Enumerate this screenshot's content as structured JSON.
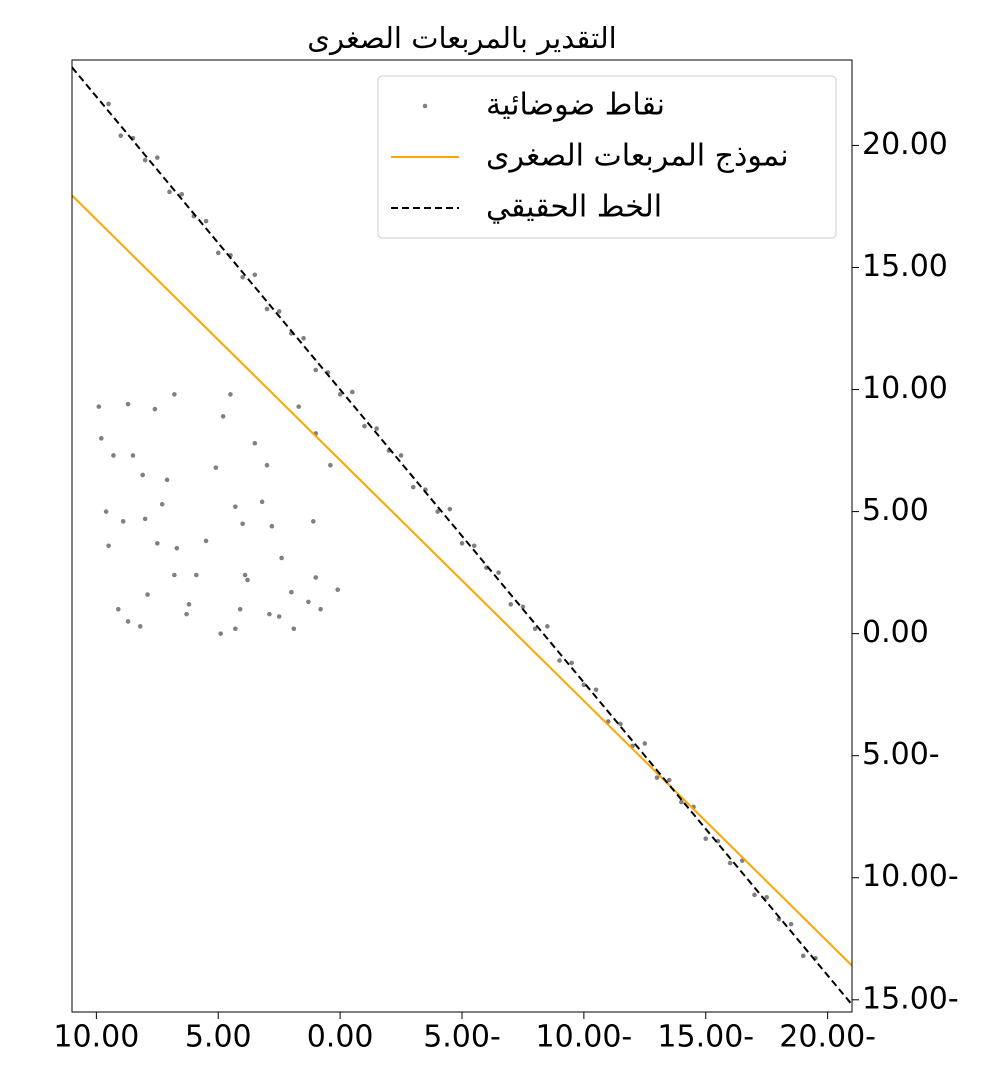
{
  "chart_data": {
    "type": "scatter",
    "title": "التقدير بالمربعات الصغرى",
    "xlim": [
      11,
      -21
    ],
    "ylim": [
      -15.5,
      23.5
    ],
    "xticks": [
      {
        "value": 10,
        "label": "10.00"
      },
      {
        "value": 5,
        "label": "5.00"
      },
      {
        "value": 0,
        "label": "0.00"
      },
      {
        "value": -5,
        "label": "5.00-"
      },
      {
        "value": -10,
        "label": "10.00-"
      },
      {
        "value": -15,
        "label": "15.00-"
      },
      {
        "value": -20,
        "label": "20.00-"
      }
    ],
    "yticks": [
      {
        "value": 20,
        "label": "20.00"
      },
      {
        "value": 15,
        "label": "15.00"
      },
      {
        "value": 10,
        "label": "10.00"
      },
      {
        "value": 5,
        "label": "5.00"
      },
      {
        "value": 0,
        "label": "0.00"
      },
      {
        "value": -5,
        "label": "5.00-"
      },
      {
        "value": -10,
        "label": "10.00-"
      },
      {
        "value": -15,
        "label": "15.00-"
      }
    ],
    "y_axis_side": "right",
    "grid": false,
    "legend": "upper right",
    "series": [
      {
        "name": "نقاط ضوضائية",
        "color": "#808080",
        "style": "markers",
        "x": [
          9.5,
          9,
          8.5,
          8,
          7.5,
          7,
          6.5,
          6,
          5.5,
          5,
          4.5,
          4,
          3.5,
          3,
          2.5,
          2,
          1.5,
          1,
          0.5,
          0,
          -0.5,
          -1,
          -1.5,
          -2,
          -2.5,
          -3,
          -3.5,
          -4,
          -4.5,
          -5,
          -5.5,
          -6,
          -6.5,
          -7,
          -7.5,
          -8,
          -8.5,
          -9,
          -9.5,
          -10,
          -10.5,
          -11,
          -11.5,
          -12,
          -12.5,
          -13,
          -13.5,
          -14,
          -14.5,
          -15,
          -15.5,
          -16,
          -16.5,
          -17,
          -17.5,
          -18,
          -18.5,
          -19,
          -19.5,
          9.9,
          9.8,
          9.6,
          9.5,
          9.3,
          8.9,
          9.1,
          8.7,
          8.2,
          8.5,
          8.7,
          8.1,
          8.0,
          7.9,
          7.5,
          7.3,
          7.6,
          7.1,
          6.8,
          6.7,
          6.8,
          5.9,
          6.2,
          6.3,
          5.5,
          5.1,
          4.9,
          4.8,
          4.5,
          4.3,
          4.0,
          4.1,
          4.3,
          3.9,
          3.8,
          3.5,
          3.2,
          3.0,
          2.8,
          2.9,
          2.5,
          2.4,
          2.0,
          1.9,
          1.7,
          1.3,
          1.1,
          1.0,
          1.0,
          0.8,
          0.1,
          0.4
        ],
        "values": [
          21.7,
          20.4,
          20.3,
          19.4,
          19.5,
          18.1,
          18.0,
          17.1,
          16.9,
          15.6,
          15.5,
          14.6,
          14.7,
          13.3,
          13.2,
          12.3,
          12.1,
          10.8,
          10.7,
          9.8,
          9.9,
          8.5,
          8.4,
          7.5,
          7.3,
          6.0,
          5.9,
          5.0,
          5.1,
          3.7,
          3.6,
          2.7,
          2.5,
          1.2,
          1.1,
          0.2,
          0.3,
          -1.1,
          -1.2,
          -2.1,
          -2.3,
          -3.6,
          -3.7,
          -4.6,
          -4.5,
          -5.9,
          -6.0,
          -6.9,
          -7.1,
          -8.4,
          -8.5,
          -9.4,
          -9.3,
          -10.7,
          -10.8,
          -11.7,
          -11.9,
          -13.2,
          -13.3,
          9.3,
          8,
          5,
          3.6,
          7.3,
          4.6,
          1,
          0.5,
          0.3,
          7.3,
          9.4,
          6.5,
          4.7,
          1.6,
          3.7,
          5.3,
          9.2,
          6.3,
          9.8,
          3.5,
          2.4,
          2.4,
          1.2,
          0.8,
          3.8,
          6.8,
          0.0,
          8.9,
          9.8,
          5.2,
          4.5,
          1.0,
          0.2,
          2.4,
          2.2,
          7.8,
          5.4,
          6.9,
          4.4,
          0.8,
          0.7,
          3.1,
          1.7,
          0.2,
          9.3,
          1.3,
          4.6,
          2.3,
          8.2,
          1.0,
          1.8,
          6.9
        ]
      },
      {
        "name": "نموذج المربعات الصغرى",
        "color": "#ffa500",
        "style": "solid",
        "x": [
          11,
          -21
        ],
        "values": [
          17.95,
          -13.6
        ]
      },
      {
        "name": "الخط الحقيقي",
        "color": "#000000",
        "style": "dashed",
        "x": [
          11,
          -21
        ],
        "values": [
          23.2,
          -15.2
        ]
      }
    ]
  }
}
